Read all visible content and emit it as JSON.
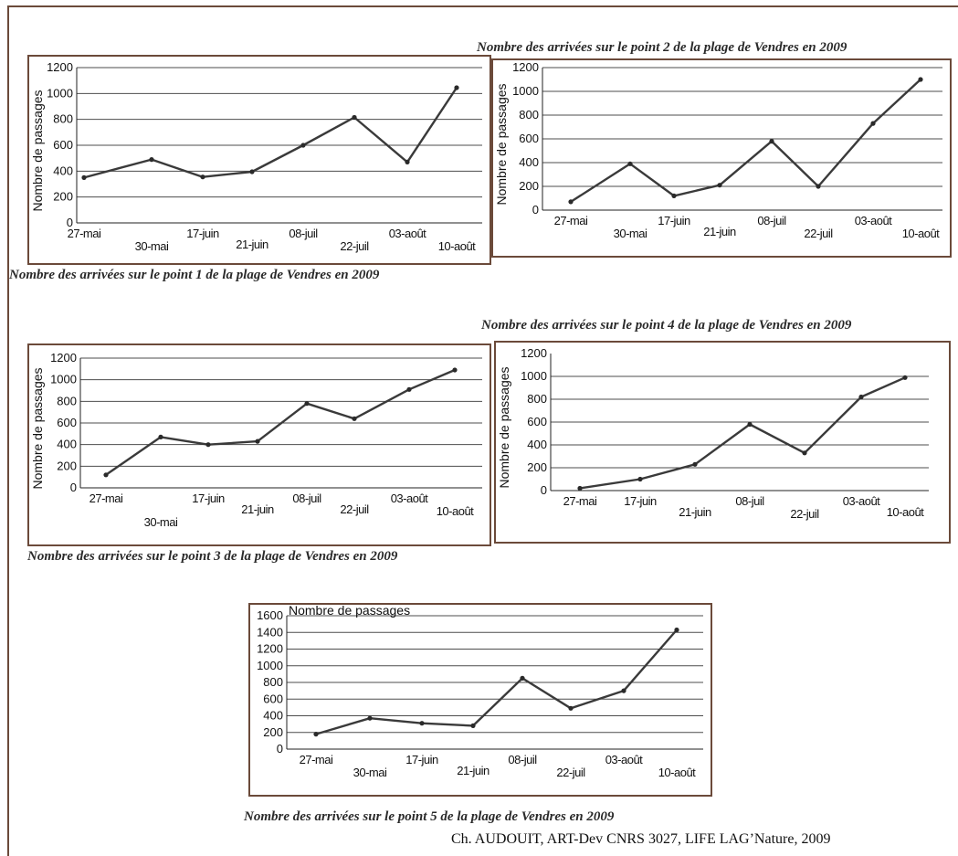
{
  "credit": "Ch. AUDOUIT, ART-Dev CNRS 3027, LIFE LAG’Nature, 2009",
  "chart_data": [
    {
      "type": "line",
      "title": "Nombre des arrivées sur le point 1 de la plage de Vendres en 2009",
      "ylabel": "Nombre de passages",
      "ylim": [
        0,
        1200
      ],
      "yticks": [
        "0",
        "200",
        "400",
        "600",
        "800",
        "1000",
        "1200"
      ],
      "categories": [
        "27-mai",
        "30-mai",
        "17-juin",
        "21-juin",
        "08-juil",
        "22-juil",
        "03-août",
        "10-août"
      ],
      "values": [
        350,
        490,
        355,
        395,
        600,
        815,
        470,
        1045
      ],
      "grid": true
    },
    {
      "type": "line",
      "title": "Nombre des arrivées sur le point 2 de la plage de Vendres en 2009",
      "ylabel": "Nombre de passages",
      "ylim": [
        0,
        1200
      ],
      "yticks": [
        "0",
        "200",
        "400",
        "600",
        "800",
        "1000",
        "1200"
      ],
      "categories": [
        "27-mai",
        "30-mai",
        "17-juin",
        "21-juin",
        "08-juil",
        "22-juil",
        "03-août",
        "10-août"
      ],
      "values": [
        70,
        390,
        120,
        210,
        580,
        200,
        730,
        1100
      ],
      "grid": true
    },
    {
      "type": "line",
      "title": "Nombre des arrivées sur le point 3 de la plage de Vendres en 2009",
      "ylabel": "Nombre de passages",
      "ylim": [
        0,
        1200
      ],
      "yticks": [
        "0",
        "200",
        "400",
        "600",
        "800",
        "1000",
        "1200"
      ],
      "categories": [
        "27-mai",
        "30-mai",
        "17-juin",
        "21-juin",
        "08-juil",
        "22-juil",
        "03-août",
        "10-août"
      ],
      "values": [
        120,
        470,
        400,
        430,
        780,
        640,
        910,
        1090
      ],
      "grid": true
    },
    {
      "type": "line",
      "title": "Nombre des arrivées sur le point 4 de la plage de Vendres en 2009",
      "ylabel": "Nombre de passages",
      "ylim": [
        0,
        1200
      ],
      "yticks": [
        "0",
        "200",
        "400",
        "600",
        "800",
        "1000",
        "1200"
      ],
      "categories": [
        "27-mai",
        "17-juin",
        "21-juin",
        "08-juil",
        "22-juil",
        "03-août",
        "10-août"
      ],
      "values": [
        20,
        100,
        230,
        580,
        330,
        820,
        990
      ],
      "grid": true
    },
    {
      "type": "line",
      "title": "Nombre des arrivées sur le point 5 de la plage de Vendres en 2009",
      "ylabel": "Nombre de passages",
      "ylim": [
        0,
        1600
      ],
      "yticks": [
        "0",
        "200",
        "400",
        "600",
        "800",
        "1000",
        "1200",
        "1400",
        "1600"
      ],
      "categories": [
        "27-mai",
        "30-mai",
        "17-juin",
        "21-juin",
        "08-juil",
        "22-juil",
        "03-août",
        "10-août"
      ],
      "values": [
        180,
        370,
        310,
        280,
        850,
        490,
        700,
        1430
      ],
      "grid": true
    }
  ]
}
